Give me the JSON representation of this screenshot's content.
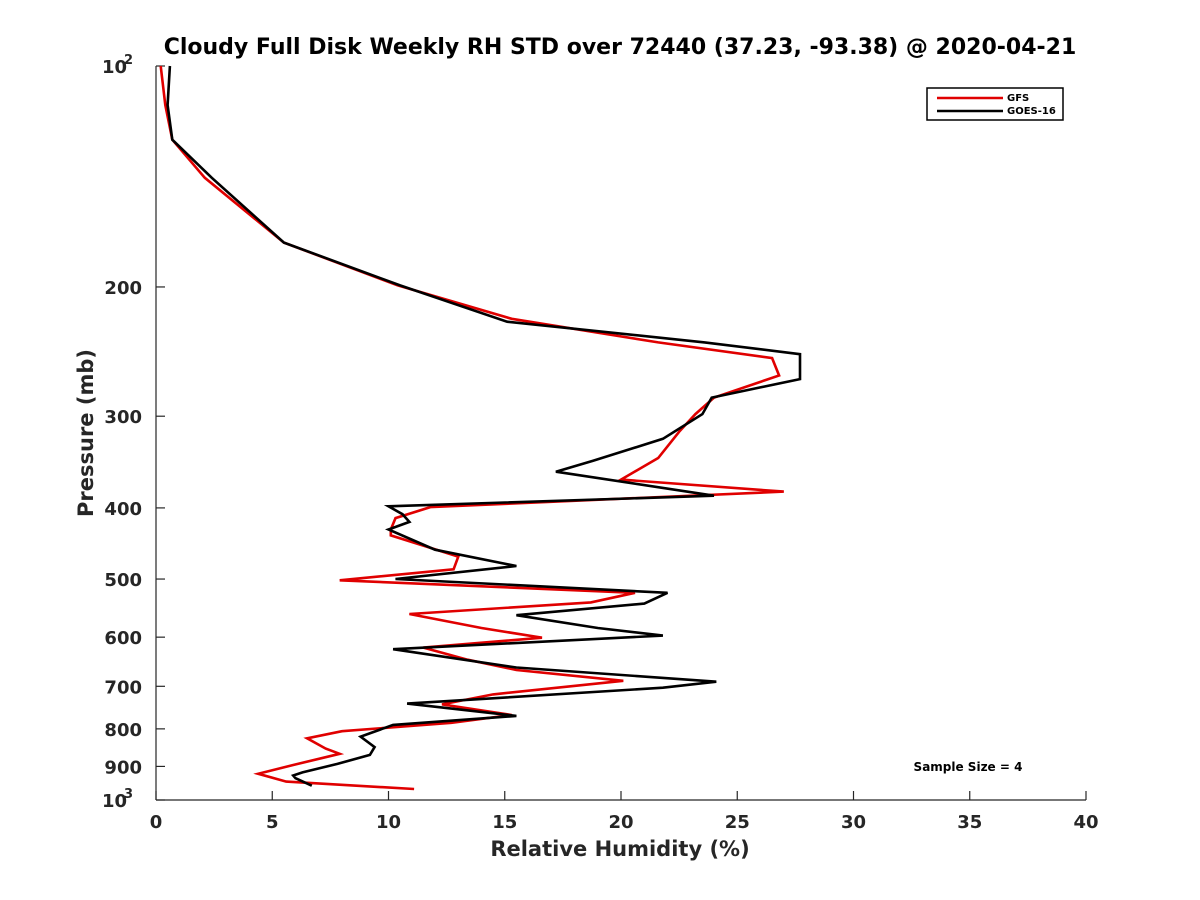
{
  "chart_data": {
    "type": "line",
    "title": "Cloudy Full Disk Weekly RH STD over 72440 (37.23, -93.38) @ 2020-04-21",
    "xlabel": "Relative Humidity (%)",
    "ylabel": "Pressure (mb)",
    "xlim": [
      0,
      40
    ],
    "ylim": [
      100,
      1000
    ],
    "y_scale": "log",
    "y_reversed": true,
    "grid": false,
    "legend_position": "top-right",
    "x_ticks": [
      "0",
      "5",
      "10",
      "15",
      "20",
      "25",
      "30",
      "35",
      "40"
    ],
    "y_ticks": [
      {
        "value": 100,
        "base": "10",
        "exp": "2"
      },
      {
        "value": 200,
        "label": "200"
      },
      {
        "value": 300,
        "label": "300"
      },
      {
        "value": 400,
        "label": "400"
      },
      {
        "value": 500,
        "label": "500"
      },
      {
        "value": 600,
        "label": "600"
      },
      {
        "value": 700,
        "label": "700"
      },
      {
        "value": 800,
        "label": "800"
      },
      {
        "value": 900,
        "label": "900"
      },
      {
        "value": 1000,
        "base": "10",
        "exp": "3"
      }
    ],
    "annotation": "Sample Size = 4",
    "series": [
      {
        "name": "GFS",
        "color": "#e00000",
        "points": [
          [
            0.2,
            100
          ],
          [
            0.4,
            113
          ],
          [
            0.7,
            126
          ],
          [
            2.1,
            142
          ],
          [
            5.5,
            174
          ],
          [
            10.4,
            199
          ],
          [
            15.3,
            221
          ],
          [
            21.6,
            238
          ],
          [
            26.5,
            250
          ],
          [
            26.8,
            264
          ],
          [
            24.0,
            283
          ],
          [
            23.2,
            298
          ],
          [
            22.5,
            315
          ],
          [
            21.6,
            342
          ],
          [
            20.0,
            366
          ],
          [
            27.0,
            380
          ],
          [
            11.8,
            399
          ],
          [
            10.3,
            413
          ],
          [
            10.1,
            428
          ],
          [
            10.1,
            436
          ],
          [
            13.0,
            466
          ],
          [
            12.8,
            485
          ],
          [
            7.9,
            502
          ],
          [
            20.6,
            522
          ],
          [
            18.7,
            538
          ],
          [
            10.9,
            558
          ],
          [
            14.0,
            583
          ],
          [
            16.6,
            601
          ],
          [
            11.5,
            620
          ],
          [
            13.4,
            644
          ],
          [
            15.5,
            665
          ],
          [
            20.1,
            688
          ],
          [
            14.5,
            718
          ],
          [
            12.3,
            741
          ],
          [
            15.3,
            766
          ],
          [
            12.7,
            785
          ],
          [
            8.0,
            806
          ],
          [
            6.5,
            824
          ],
          [
            7.3,
            851
          ],
          [
            7.9,
            865
          ],
          [
            5.9,
            896
          ],
          [
            4.4,
            921
          ],
          [
            5.6,
            944
          ],
          [
            11.1,
            966
          ]
        ]
      },
      {
        "name": "GOES-16",
        "color": "#000000",
        "points": [
          [
            0.6,
            100
          ],
          [
            0.5,
            113
          ],
          [
            0.7,
            126
          ],
          [
            2.4,
            142
          ],
          [
            5.5,
            174
          ],
          [
            10.5,
            199
          ],
          [
            15.1,
            223
          ],
          [
            23.6,
            238
          ],
          [
            27.7,
            247
          ],
          [
            27.7,
            267
          ],
          [
            23.9,
            283
          ],
          [
            23.5,
            298
          ],
          [
            21.8,
            322
          ],
          [
            18.8,
            345
          ],
          [
            17.2,
            357
          ],
          [
            24.0,
            385
          ],
          [
            10.0,
            398
          ],
          [
            10.6,
            408
          ],
          [
            10.9,
            418
          ],
          [
            10.0,
            428
          ],
          [
            12.0,
            456
          ],
          [
            15.5,
            480
          ],
          [
            10.3,
            500
          ],
          [
            22.0,
            522
          ],
          [
            21.0,
            540
          ],
          [
            15.5,
            560
          ],
          [
            19.0,
            583
          ],
          [
            21.8,
            597
          ],
          [
            10.2,
            623
          ],
          [
            15.5,
            660
          ],
          [
            24.1,
            690
          ],
          [
            21.8,
            703
          ],
          [
            10.8,
            739
          ],
          [
            15.5,
            768
          ],
          [
            10.2,
            790
          ],
          [
            8.8,
            820
          ],
          [
            9.4,
            847
          ],
          [
            9.2,
            868
          ],
          [
            7.8,
            893
          ],
          [
            6.3,
            917
          ],
          [
            5.9,
            926
          ],
          [
            6.0,
            934
          ],
          [
            6.7,
            956
          ]
        ]
      }
    ]
  }
}
